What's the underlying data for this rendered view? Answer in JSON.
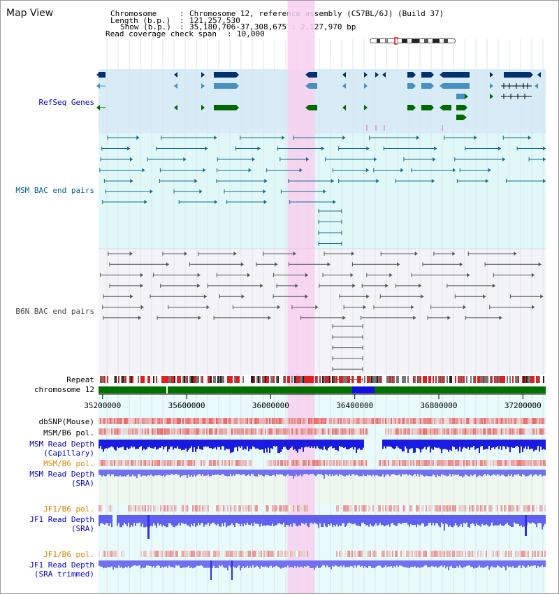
{
  "page": {
    "title": "Map View"
  },
  "header": {
    "chromosome_label": "Chromosome",
    "chromosome_value": "Chromosome 12, reference assembly (C57BL/6J) (Build 37)",
    "length_label": "Length (b.p.)",
    "length_value": "121,257,530",
    "show_label": "Show (b.p.)",
    "show_value": "35,180,706-37,308,675 : 2,127,970 bp",
    "coverage_label": "Read coverage check span",
    "coverage_value": "10,000"
  },
  "tracks": {
    "refseq": {
      "label": "RefSeq Genes",
      "color": "#0000cc"
    },
    "msm_bac": {
      "label": "MSM BAC end pairs",
      "color": "#006688"
    },
    "b6n_bac": {
      "label": "B6N BAC end pairs",
      "color": "#444444"
    },
    "repeat": {
      "label": "Repeat"
    },
    "chromosome": {
      "label": "chromosome 12"
    },
    "dbsnp": {
      "label": "dbSNP(Mouse)"
    },
    "msm_b6_pol_1": {
      "label": "MSM/B6 pol."
    },
    "msm_read_depth_cap": {
      "label": "MSM Read Depth\n(Capillary)",
      "color": "#0000cc"
    },
    "msm_b6_pol_2": {
      "label": "MSM/B6 pol.",
      "color": "#e08000"
    },
    "msm_read_depth_sra": {
      "label": "MSM Read Depth\n(SRA)",
      "color": "#0000cc"
    },
    "jf1_b6_pol_1": {
      "label": "JF1/B6 pol.",
      "color": "#e08000"
    },
    "jf1_read_depth_sra": {
      "label": "JF1 Read Depth\n(SRA)",
      "color": "#0000cc"
    },
    "jf1_b6_pol_2": {
      "label": "JF1/B6 pol.",
      "color": "#e08000"
    },
    "jf1_read_depth_trim": {
      "label": "JF1 Read Depth\n(SRA trimmed)",
      "color": "#0000cc"
    }
  },
  "axis": {
    "ticks": [
      {
        "pos": 35200000,
        "label": "35200000"
      },
      {
        "pos": 35600000,
        "label": "35600000"
      },
      {
        "pos": 36000000,
        "label": "36000000"
      },
      {
        "pos": 36400000,
        "label": "36400000"
      },
      {
        "pos": 36800000,
        "label": "36800000"
      },
      {
        "pos": 37200000,
        "label": "37200000"
      }
    ],
    "start": 35180706,
    "end": 37308675,
    "highlight_start": 36080000,
    "highlight_end": 36210000
  },
  "colors": {
    "refseq_band": "#d8ecf8",
    "msm_band": "#e0f8f8",
    "b6n_band": "#f4f4f8",
    "highlight": "#f8d0f0",
    "gene_dark": "#003070",
    "gene_mid": "#4890c0",
    "gene_green": "#006a00",
    "chrom_green": "#007000",
    "chrom_blue": "#1010e0"
  }
}
